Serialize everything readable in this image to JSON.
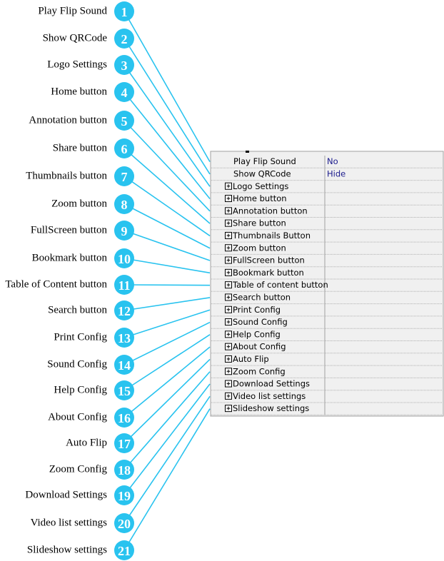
{
  "callouts": [
    {
      "label": "Play Flip Sound",
      "number": 1
    },
    {
      "label": "Show QRCode",
      "number": 2
    },
    {
      "label": "Logo Settings",
      "number": 3
    },
    {
      "label": "Home button",
      "number": 4
    },
    {
      "label": "Annotation button",
      "number": 5
    },
    {
      "label": "Share button",
      "number": 6
    },
    {
      "label": "Thumbnails button",
      "number": 7
    },
    {
      "label": "Zoom button",
      "number": 8
    },
    {
      "label": "FullScreen button",
      "number": 9
    },
    {
      "label": "Bookmark button",
      "number": 10
    },
    {
      "label": "Table of Content button",
      "number": 11
    },
    {
      "label": "Search button",
      "number": 12
    },
    {
      "label": "Print Config",
      "number": 13
    },
    {
      "label": "Sound Config",
      "number": 14
    },
    {
      "label": "Help Config",
      "number": 15
    },
    {
      "label": "About Config",
      "number": 16
    },
    {
      "label": "Auto Flip",
      "number": 17
    },
    {
      "label": "Zoom Config",
      "number": 18
    },
    {
      "label": "Download Settings",
      "number": 19
    },
    {
      "label": "Video list settings",
      "number": 20
    },
    {
      "label": "Slideshow settings",
      "number": 21
    }
  ],
  "grid": {
    "rows": [
      {
        "name": "Play Flip Sound",
        "value": "No"
      },
      {
        "name": "Show QRCode",
        "value": "Hide"
      },
      {
        "name": "Logo Settings"
      },
      {
        "name": "Home button"
      },
      {
        "name": "Annotation button"
      },
      {
        "name": "Share button"
      },
      {
        "name": "Thumbnails Button"
      },
      {
        "name": "Zoom button"
      },
      {
        "name": "FullScreen button"
      },
      {
        "name": "Bookmark button"
      },
      {
        "name": "Table of content button"
      },
      {
        "name": "Search button"
      },
      {
        "name": "Print Config"
      },
      {
        "name": "Sound Config"
      },
      {
        "name": "Help Config"
      },
      {
        "name": "About Config"
      },
      {
        "name": "Auto Flip"
      },
      {
        "name": "Zoom Config"
      },
      {
        "name": "Download Settings"
      },
      {
        "name": "Video list settings"
      },
      {
        "name": "Slideshow settings"
      }
    ]
  }
}
